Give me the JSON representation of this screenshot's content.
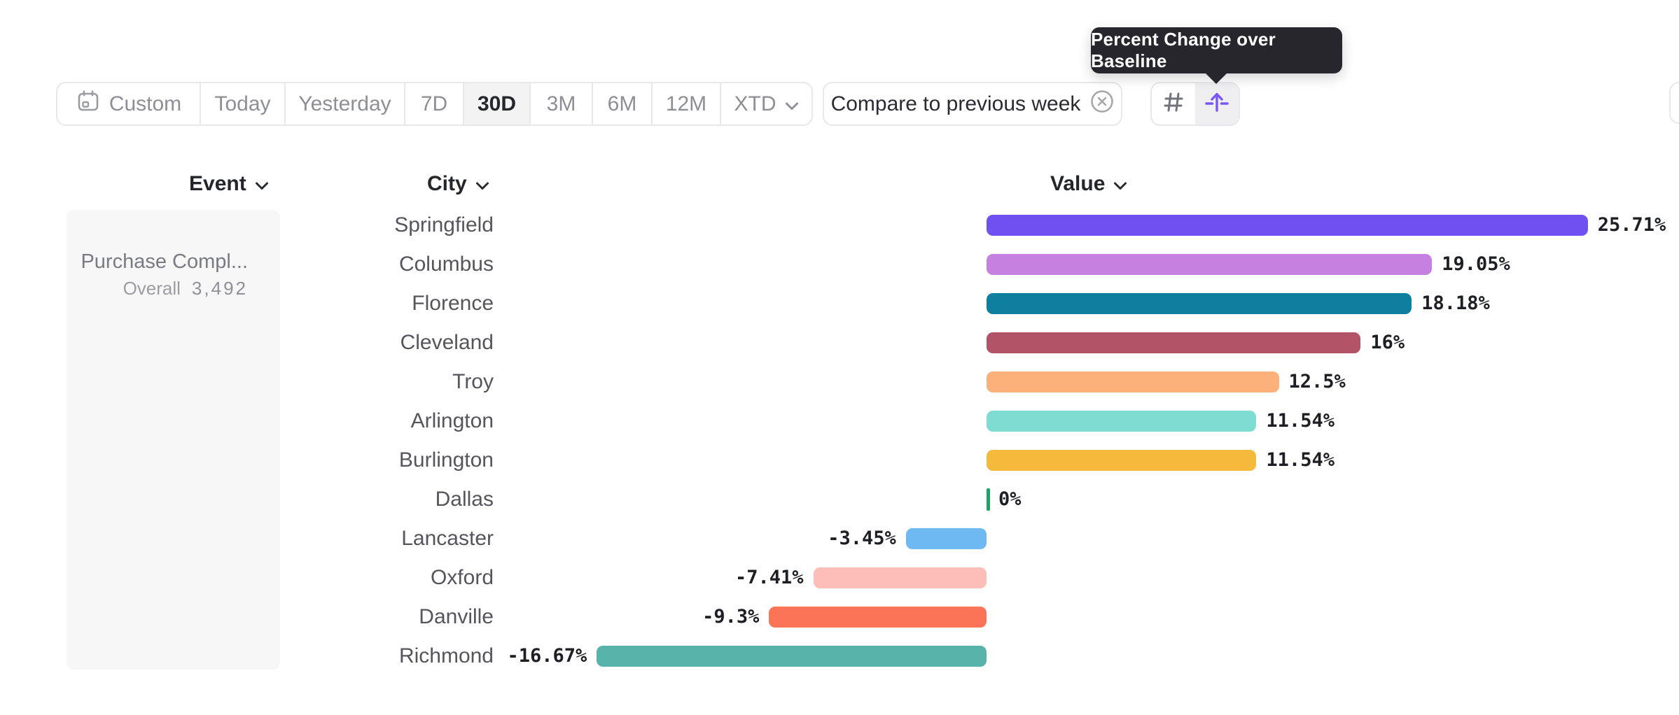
{
  "tooltip": {
    "text": "Percent Change over Baseline"
  },
  "toolbar": {
    "items": [
      {
        "label": "Custom",
        "icon": "calendar-icon",
        "selected": false
      },
      {
        "label": "Today",
        "selected": false
      },
      {
        "label": "Yesterday",
        "selected": false
      },
      {
        "label": "7D",
        "selected": false
      },
      {
        "label": "30D",
        "selected": true
      },
      {
        "label": "3M",
        "selected": false
      },
      {
        "label": "6M",
        "selected": false
      },
      {
        "label": "12M",
        "selected": false
      },
      {
        "label": "XTD",
        "icon": "chevron-down-icon",
        "selected": false
      }
    ]
  },
  "compare": {
    "label": "Compare to previous week",
    "icon": "x-circle-icon"
  },
  "view_toggle": {
    "options": [
      {
        "icon": "hash-icon",
        "selected": false
      },
      {
        "icon": "arrow-up-from-baseline-icon",
        "selected": true
      }
    ]
  },
  "columns": {
    "event": "Event",
    "city": "City",
    "value": "Value"
  },
  "event_panel": {
    "title": "Purchase Compl...",
    "overall_label": "Overall",
    "overall_value": "3,492"
  },
  "colors": {
    "accent_purple": "#7857f6",
    "baseline_tick_green": "#1ea566",
    "tooltip_bg": "#26262c",
    "border": "#e8e8eb"
  },
  "chart_data": {
    "type": "bar",
    "orientation": "horizontal",
    "title": "Percent Change over Baseline",
    "series_name": "Value",
    "event": "Purchase Compl...",
    "event_overall": 3492,
    "categories": [
      "Springfield",
      "Columbus",
      "Florence",
      "Cleveland",
      "Troy",
      "Arlington",
      "Burlington",
      "Dallas",
      "Lancaster",
      "Oxford",
      "Danville",
      "Richmond"
    ],
    "values": [
      25.71,
      19.05,
      18.18,
      16,
      12.5,
      11.54,
      11.54,
      0,
      -3.45,
      -7.41,
      -9.3,
      -16.67
    ],
    "labels": [
      "25.71%",
      "19.05%",
      "18.18%",
      "16%",
      "12.5%",
      "11.54%",
      "11.54%",
      "0%",
      "-3.45%",
      "-7.41%",
      "-9.3%",
      "-16.67%"
    ],
    "bar_colors": [
      "#7150f2",
      "#c580e0",
      "#0f7f9f",
      "#b25368",
      "#fcb07a",
      "#7edcd2",
      "#f5b93c",
      "#1ea566",
      "#6fb9f2",
      "#fcbeb7",
      "#fb7458",
      "#58b4aa"
    ],
    "xlim": [
      -16.67,
      25.71
    ],
    "baseline": 0,
    "grid": false,
    "legend": false
  }
}
